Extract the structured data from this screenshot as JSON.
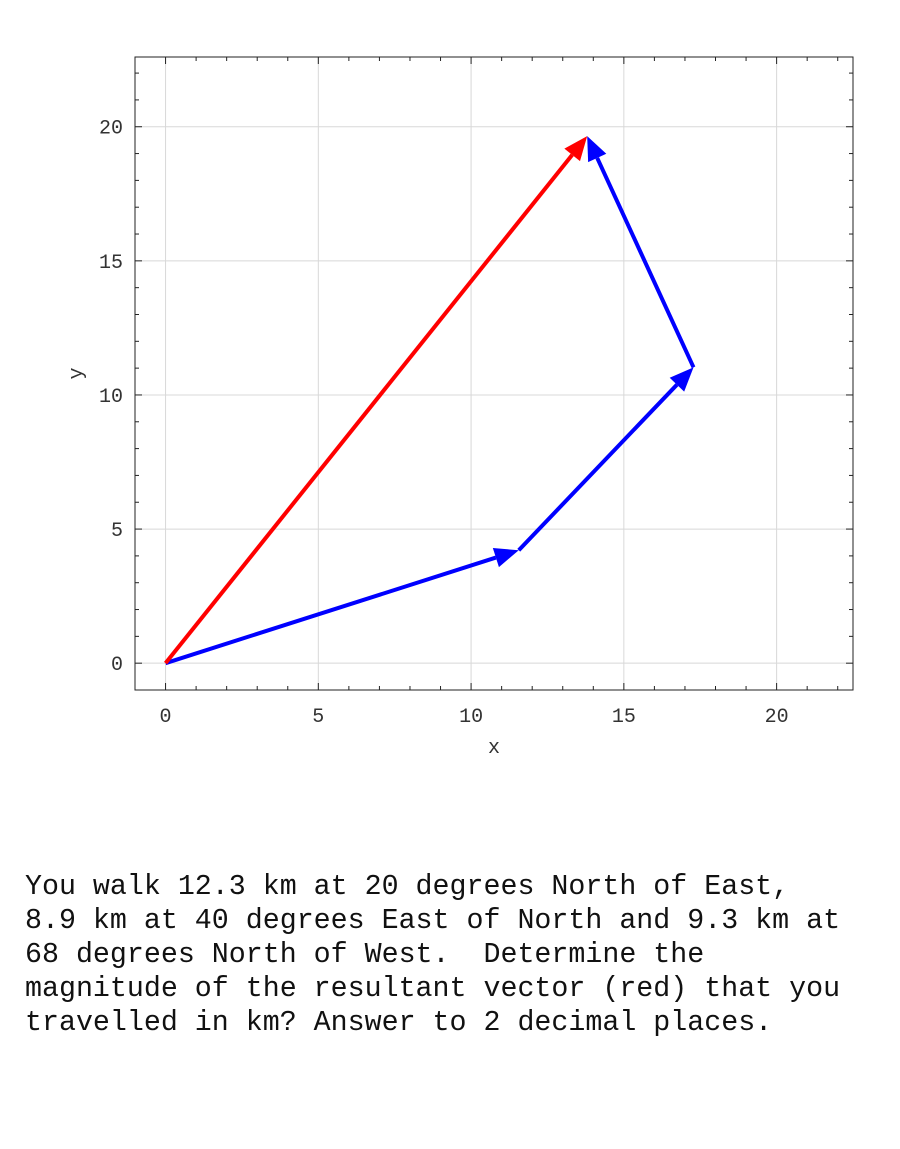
{
  "chart_data": {
    "type": "vector",
    "xlabel": "x",
    "ylabel": "y",
    "xlim": [
      -1,
      22.5
    ],
    "ylim": [
      -1,
      22.6
    ],
    "xticks": [
      0,
      5,
      10,
      15,
      20
    ],
    "yticks": [
      0,
      5,
      10,
      15,
      20
    ],
    "grid": true,
    "vectors": [
      {
        "from": [
          0,
          0
        ],
        "to": [
          11.56,
          4.21
        ],
        "color": "#0000ff"
      },
      {
        "from": [
          11.56,
          4.21
        ],
        "to": [
          17.28,
          11.03
        ],
        "color": "#0000ff"
      },
      {
        "from": [
          17.28,
          11.03
        ],
        "to": [
          13.8,
          19.65
        ],
        "color": "#0000ff"
      },
      {
        "from": [
          0,
          0
        ],
        "to": [
          13.8,
          19.65
        ],
        "color": "#ff0000"
      }
    ]
  },
  "question": "You walk 12.3 km at 20 degrees North of East,\n8.9 km at 40 degrees East of North and 9.3 km at\n68 degrees North of West.  Determine the\nmagnitude of the resultant vector (red) that you\ntravelled in km? Answer to 2 decimal places."
}
